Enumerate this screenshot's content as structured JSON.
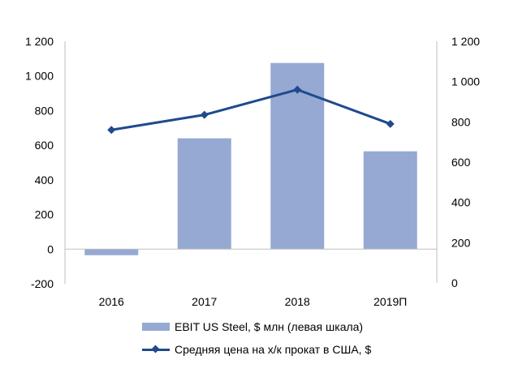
{
  "chart_data": {
    "type": "bar+line",
    "categories": [
      "2016",
      "2017",
      "2018",
      "2019П"
    ],
    "series": [
      {
        "name": "EBIT US Steel, $ млн (левая шкала)",
        "type": "bar",
        "axis": "left",
        "values": [
          -35,
          640,
          1075,
          565
        ],
        "color": "#95a9d2"
      },
      {
        "name": "Средняя цена на х/к прокат в США, $",
        "type": "line",
        "axis": "right",
        "values": [
          760,
          835,
          960,
          790
        ],
        "color": "#1f4a8e",
        "marker": "diamond"
      }
    ],
    "y_left": {
      "ylim": [
        -200,
        1200
      ],
      "ticks": [
        -200,
        0,
        200,
        400,
        600,
        800,
        1000,
        1200
      ],
      "tick_labels": [
        "-200",
        "0",
        "200",
        "400",
        "600",
        "800",
        "1 000",
        "1 200"
      ]
    },
    "y_right": {
      "ylim": [
        0,
        1200
      ],
      "ticks": [
        0,
        200,
        400,
        600,
        800,
        1000,
        1200
      ],
      "tick_labels": [
        "0",
        "200",
        "400",
        "600",
        "800",
        "1 000",
        "1 200"
      ]
    },
    "grid": false,
    "legend_position": "bottom"
  },
  "legend": {
    "bar_label": "EBIT US Steel, $ млн (левая шкала)",
    "line_label": "Средняя цена на х/к прокат в США, $"
  }
}
